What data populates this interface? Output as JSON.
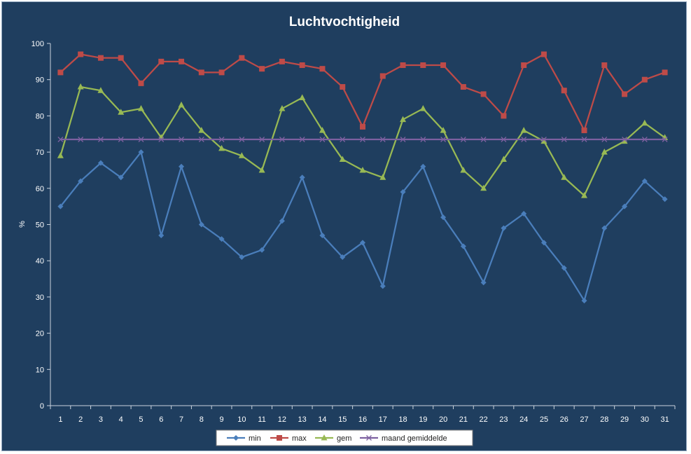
{
  "chart_data": {
    "type": "line",
    "title": "Luchtvochtigheid",
    "xlabel": "",
    "ylabel": "%",
    "ylim": [
      0,
      100
    ],
    "yticks": [
      0,
      10,
      20,
      30,
      40,
      50,
      60,
      70,
      80,
      90,
      100
    ],
    "x": [
      1,
      2,
      3,
      4,
      5,
      6,
      7,
      8,
      9,
      10,
      11,
      12,
      13,
      14,
      15,
      16,
      17,
      18,
      19,
      20,
      21,
      22,
      23,
      24,
      25,
      26,
      27,
      28,
      29,
      30,
      31
    ],
    "grid": false,
    "legend_position": "bottom",
    "series": [
      {
        "name": "min",
        "color": "#4a7ebb",
        "marker": "diamond",
        "values": [
          55,
          62,
          67,
          63,
          70,
          47,
          66,
          50,
          46,
          41,
          43,
          51,
          63,
          47,
          41,
          45,
          33,
          59,
          66,
          52,
          44,
          34,
          49,
          53,
          45,
          38,
          29,
          49,
          55,
          62,
          57
        ]
      },
      {
        "name": "max",
        "color": "#be4b48",
        "marker": "square",
        "values": [
          92,
          97,
          96,
          96,
          89,
          95,
          95,
          92,
          92,
          96,
          93,
          95,
          94,
          93,
          88,
          77,
          91,
          94,
          94,
          94,
          88,
          86,
          80,
          94,
          97,
          87,
          76,
          94,
          86,
          90,
          92
        ]
      },
      {
        "name": "gem",
        "color": "#98b954",
        "marker": "triangle",
        "values": [
          69,
          88,
          87,
          81,
          82,
          74,
          83,
          76,
          71,
          69,
          65,
          82,
          85,
          76,
          68,
          65,
          63,
          79,
          82,
          76,
          65,
          60,
          68,
          76,
          73,
          63,
          58,
          70,
          73,
          78,
          74
        ]
      },
      {
        "name": "maand gemiddelde",
        "color": "#7d60a0",
        "marker": "x",
        "values": [
          73.5,
          73.5,
          73.5,
          73.5,
          73.5,
          73.5,
          73.5,
          73.5,
          73.5,
          73.5,
          73.5,
          73.5,
          73.5,
          73.5,
          73.5,
          73.5,
          73.5,
          73.5,
          73.5,
          73.5,
          73.5,
          73.5,
          73.5,
          73.5,
          73.5,
          73.5,
          73.5,
          73.5,
          73.5,
          73.5,
          73.5
        ]
      }
    ]
  }
}
